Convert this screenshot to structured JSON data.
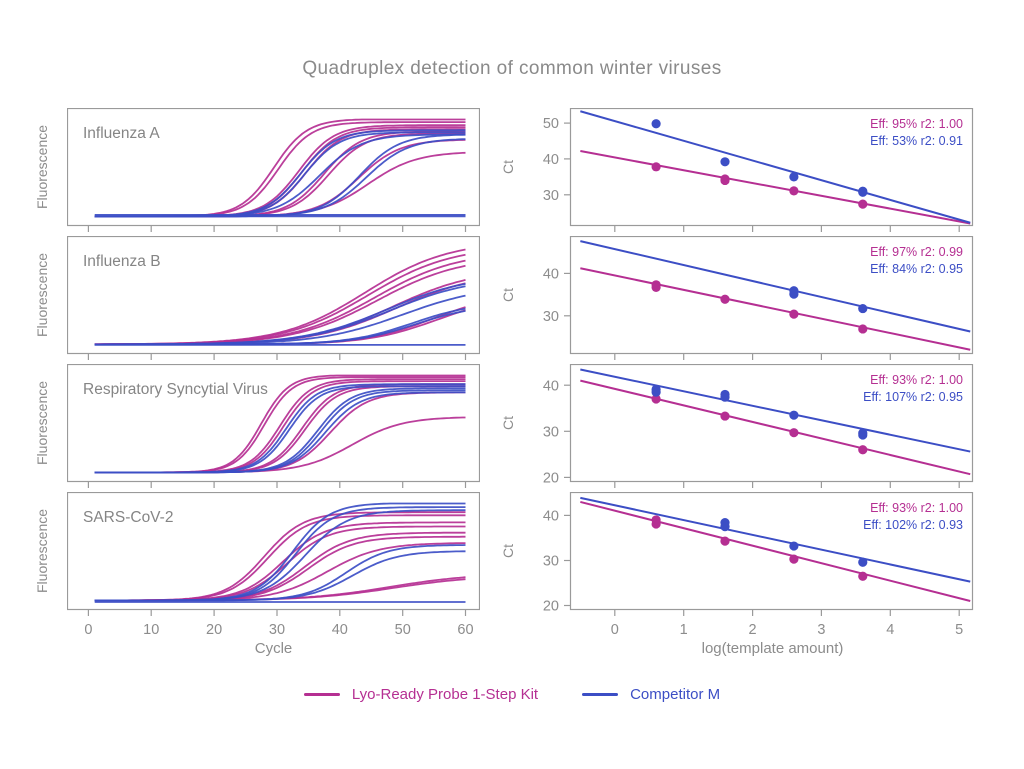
{
  "figure": {
    "title": "Quadruplex detection of common winter viruses"
  },
  "colors": {
    "kit": "#b52f92",
    "competitor": "#3c4ec5",
    "text_gray": "#8a8a8a",
    "axis_gray": "#9a9a9a"
  },
  "axes": {
    "amplification_xlabel": "Cycle",
    "amplification_ylabel": "Fluorescence",
    "standard_xlabel": "log(template amount)",
    "standard_ylabel": "Ct"
  },
  "legend": {
    "items": [
      {
        "series": "kit",
        "label": "Lyo-Ready Probe 1-Step Kit"
      },
      {
        "series": "competitor",
        "label": "Competitor M"
      }
    ]
  },
  "chart_data": {
    "amplification": {
      "type": "line",
      "xlabel": "Cycle",
      "ylabel": "Fluorescence",
      "xlim": [
        -3.4,
        62.3
      ],
      "xticks": [
        0,
        10,
        20,
        30,
        40,
        50,
        60
      ],
      "baseline": 0.035,
      "panels": [
        {
          "virus": "Influenza A",
          "curves": [
            {
              "series": "kit",
              "mid": 29.5,
              "plateau": 0.99,
              "k": 0.38
            },
            {
              "series": "kit",
              "mid": 30.2,
              "plateau": 0.96,
              "k": 0.38
            },
            {
              "series": "kit",
              "mid": 33.5,
              "plateau": 0.93,
              "k": 0.36
            },
            {
              "series": "kit",
              "mid": 34.0,
              "plateau": 0.91,
              "k": 0.36
            },
            {
              "series": "kit",
              "mid": 34.6,
              "plateau": 0.89,
              "k": 0.36
            },
            {
              "series": "kit",
              "mid": 37.5,
              "plateau": 0.87,
              "k": 0.34
            },
            {
              "series": "kit",
              "mid": 38.2,
              "plateau": 0.85,
              "k": 0.34
            },
            {
              "series": "kit",
              "mid": 43.0,
              "plateau": 0.79,
              "k": 0.3
            },
            {
              "series": "kit",
              "mid": 44.5,
              "plateau": 0.67,
              "k": 0.26
            },
            {
              "series": "competitor",
              "mid": 33.8,
              "plateau": 0.88,
              "k": 0.36
            },
            {
              "series": "competitor",
              "mid": 34.4,
              "plateau": 0.86,
              "k": 0.36
            },
            {
              "series": "competitor",
              "mid": 36.8,
              "plateau": 0.84,
              "k": 0.3
            },
            {
              "series": "competitor",
              "mid": 43.2,
              "plateau": 0.84,
              "k": 0.32
            },
            {
              "series": "competitor",
              "mid": 44.2,
              "plateau": 0.8,
              "k": 0.3
            },
            {
              "series": "competitor",
              "flat": 0.05
            },
            {
              "series": "competitor",
              "flat": 0.035
            }
          ]
        },
        {
          "virus": "Influenza B",
          "curves": [
            {
              "series": "kit",
              "mid": 44.0,
              "plateau": 1.05,
              "k": 0.15
            },
            {
              "series": "kit",
              "mid": 44.5,
              "plateau": 1.0,
              "k": 0.15
            },
            {
              "series": "kit",
              "mid": 45.5,
              "plateau": 0.95,
              "k": 0.15
            },
            {
              "series": "kit",
              "mid": 46.0,
              "plateau": 0.9,
              "k": 0.15
            },
            {
              "series": "kit",
              "mid": 48.5,
              "plateau": 0.78,
              "k": 0.15
            },
            {
              "series": "kit",
              "mid": 49.0,
              "plateau": 0.75,
              "k": 0.15
            },
            {
              "series": "kit",
              "mid": 55.0,
              "plateau": 0.55,
              "k": 0.18
            },
            {
              "series": "kit",
              "mid": 55.5,
              "plateau": 0.52,
              "k": 0.18
            },
            {
              "series": "competitor",
              "mid": 47.5,
              "plateau": 0.72,
              "k": 0.15
            },
            {
              "series": "competitor",
              "mid": 48.0,
              "plateau": 0.7,
              "k": 0.15
            },
            {
              "series": "competitor",
              "mid": 50.0,
              "plateau": 0.62,
              "k": 0.15
            },
            {
              "series": "competitor",
              "mid": 51.5,
              "plateau": 0.45,
              "k": 0.2
            },
            {
              "series": "competitor",
              "mid": 52.0,
              "plateau": 0.43,
              "k": 0.2
            },
            {
              "series": "competitor",
              "flat": 0.03
            }
          ]
        },
        {
          "virus": "Respiratory Syncytial Virus",
          "curves": [
            {
              "series": "kit",
              "mid": 27.5,
              "plateau": 0.99,
              "k": 0.45
            },
            {
              "series": "kit",
              "mid": 28.0,
              "plateau": 0.97,
              "k": 0.45
            },
            {
              "series": "kit",
              "mid": 30.5,
              "plateau": 0.95,
              "k": 0.42
            },
            {
              "series": "kit",
              "mid": 31.0,
              "plateau": 0.93,
              "k": 0.42
            },
            {
              "series": "kit",
              "mid": 34.0,
              "plateau": 0.9,
              "k": 0.4
            },
            {
              "series": "kit",
              "mid": 34.5,
              "plateau": 0.88,
              "k": 0.4
            },
            {
              "series": "kit",
              "mid": 38.5,
              "plateau": 0.82,
              "k": 0.34
            },
            {
              "series": "kit",
              "mid": 42.0,
              "plateau": 0.58,
              "k": 0.25
            },
            {
              "series": "competitor",
              "mid": 31.5,
              "plateau": 0.9,
              "k": 0.42
            },
            {
              "series": "competitor",
              "mid": 32.0,
              "plateau": 0.88,
              "k": 0.42
            },
            {
              "series": "competitor",
              "mid": 36.5,
              "plateau": 0.86,
              "k": 0.38
            },
            {
              "series": "competitor",
              "mid": 37.0,
              "plateau": 0.84,
              "k": 0.38
            },
            {
              "series": "competitor",
              "mid": 37.7,
              "plateau": 0.82,
              "k": 0.36
            }
          ]
        },
        {
          "virus": "SARS-CoV-2",
          "curves": [
            {
              "series": "kit",
              "mid": 28.0,
              "plateau": 0.9,
              "k": 0.32
            },
            {
              "series": "kit",
              "mid": 28.6,
              "plateau": 0.87,
              "k": 0.32
            },
            {
              "series": "kit",
              "mid": 31.0,
              "plateau": 0.8,
              "k": 0.3
            },
            {
              "series": "kit",
              "mid": 31.6,
              "plateau": 0.76,
              "k": 0.3
            },
            {
              "series": "kit",
              "mid": 34.5,
              "plateau": 0.7,
              "k": 0.28
            },
            {
              "series": "kit",
              "mid": 35.0,
              "plateau": 0.66,
              "k": 0.28
            },
            {
              "series": "kit",
              "mid": 38.0,
              "plateau": 0.6,
              "k": 0.24
            },
            {
              "series": "kit",
              "mid": 48.0,
              "plateau": 0.3,
              "k": 0.15
            },
            {
              "series": "kit",
              "mid": 48.5,
              "plateau": 0.28,
              "k": 0.15
            },
            {
              "series": "competitor",
              "mid": 32.5,
              "plateau": 0.99,
              "k": 0.34
            },
            {
              "series": "competitor",
              "mid": 33.0,
              "plateau": 0.95,
              "k": 0.34
            },
            {
              "series": "competitor",
              "mid": 34.5,
              "plateau": 0.92,
              "k": 0.3
            },
            {
              "series": "competitor",
              "mid": 41.0,
              "plateau": 0.58,
              "k": 0.3
            },
            {
              "series": "competitor",
              "mid": 42.0,
              "plateau": 0.52,
              "k": 0.28
            },
            {
              "series": "competitor",
              "flat": 0.02
            }
          ]
        }
      ]
    },
    "standard_curves": {
      "type": "scatter",
      "xlabel": "log(template amount)",
      "ylabel": "Ct",
      "xlim": [
        -0.65,
        5.2
      ],
      "xticks": [
        0,
        1,
        2,
        3,
        4,
        5
      ],
      "panels": [
        {
          "virus": "Influenza A",
          "ylim": [
            21.3,
            54.2
          ],
          "yticks": [
            30,
            40,
            50
          ],
          "annotations": [
            {
              "series": "kit",
              "text": "Eff: 95% r2: 1.00"
            },
            {
              "series": "competitor",
              "text": "Eff: 53% r2: 0.91"
            }
          ],
          "series": [
            {
              "name": "kit",
              "points": [
                [
                  0.6,
                  37.8
                ],
                [
                  1.6,
                  34.4
                ],
                [
                  1.6,
                  34.0
                ],
                [
                  2.6,
                  31.1
                ],
                [
                  3.6,
                  27.4
                ]
              ],
              "line": {
                "x1": -0.5,
                "y1": 42.2,
                "x2": 5.16,
                "y2": 22.0
              }
            },
            {
              "name": "competitor",
              "points": [
                [
                  0.6,
                  49.8
                ],
                [
                  1.6,
                  39.2
                ],
                [
                  2.6,
                  35.0
                ],
                [
                  3.6,
                  31.0
                ],
                [
                  3.6,
                  30.7
                ]
              ],
              "line": {
                "x1": -0.5,
                "y1": 53.3,
                "x2": 5.16,
                "y2": 22.2
              }
            }
          ]
        },
        {
          "virus": "Influenza B",
          "ylim": [
            21.0,
            48.8
          ],
          "yticks": [
            30,
            40
          ],
          "annotations": [
            {
              "series": "kit",
              "text": "Eff: 97% r2: 0.99"
            },
            {
              "series": "competitor",
              "text": "Eff: 84% r2: 0.95"
            }
          ],
          "series": [
            {
              "name": "kit",
              "points": [
                [
                  0.6,
                  37.3
                ],
                [
                  0.6,
                  36.7
                ],
                [
                  1.6,
                  33.9
                ],
                [
                  2.6,
                  30.4
                ],
                [
                  3.6,
                  26.9
                ]
              ],
              "line": {
                "x1": -0.5,
                "y1": 41.2,
                "x2": 5.16,
                "y2": 22.0
              }
            },
            {
              "name": "competitor",
              "points": [
                [
                  2.6,
                  35.9
                ],
                [
                  2.6,
                  35.1
                ],
                [
                  3.6,
                  31.7
                ]
              ],
              "line": {
                "x1": -0.5,
                "y1": 47.6,
                "x2": 5.16,
                "y2": 26.3
              }
            }
          ]
        },
        {
          "virus": "Respiratory Syncytial Virus",
          "ylim": [
            19.0,
            44.6
          ],
          "yticks": [
            20,
            30,
            40
          ],
          "annotations": [
            {
              "series": "kit",
              "text": "Eff: 93% r2: 1.00"
            },
            {
              "series": "competitor",
              "text": "Eff: 107% r2: 0.95"
            }
          ],
          "series": [
            {
              "name": "kit",
              "points": [
                [
                  0.6,
                  37.0
                ],
                [
                  1.6,
                  33.3
                ],
                [
                  2.6,
                  29.7
                ],
                [
                  3.6,
                  26.0
                ]
              ],
              "line": {
                "x1": -0.5,
                "y1": 41.0,
                "x2": 5.16,
                "y2": 20.7
              }
            },
            {
              "name": "competitor",
              "points": [
                [
                  0.6,
                  39.1
                ],
                [
                  0.6,
                  38.5
                ],
                [
                  1.6,
                  38.0
                ],
                [
                  1.6,
                  37.4
                ],
                [
                  2.6,
                  33.5
                ],
                [
                  3.6,
                  29.6
                ],
                [
                  3.6,
                  29.2
                ]
              ],
              "line": {
                "x1": -0.5,
                "y1": 43.4,
                "x2": 5.16,
                "y2": 25.6
              }
            }
          ]
        },
        {
          "virus": "SARS-CoV-2",
          "ylim": [
            19.0,
            45.2
          ],
          "yticks": [
            20,
            30,
            40
          ],
          "annotations": [
            {
              "series": "kit",
              "text": "Eff: 93% r2: 1.00"
            },
            {
              "series": "competitor",
              "text": "Eff: 102% r2: 0.93"
            }
          ],
          "series": [
            {
              "name": "kit",
              "points": [
                [
                  0.6,
                  39.0
                ],
                [
                  0.6,
                  38.1
                ],
                [
                  1.6,
                  34.3
                ],
                [
                  2.6,
                  30.3
                ],
                [
                  3.6,
                  26.5
                ]
              ],
              "line": {
                "x1": -0.5,
                "y1": 43.0,
                "x2": 5.16,
                "y2": 21.0
              }
            },
            {
              "name": "competitor",
              "points": [
                [
                  1.6,
                  38.4
                ],
                [
                  1.6,
                  37.5
                ],
                [
                  2.6,
                  33.2
                ],
                [
                  3.6,
                  29.6
                ]
              ],
              "line": {
                "x1": -0.5,
                "y1": 43.9,
                "x2": 5.16,
                "y2": 25.3
              }
            }
          ]
        }
      ]
    }
  }
}
